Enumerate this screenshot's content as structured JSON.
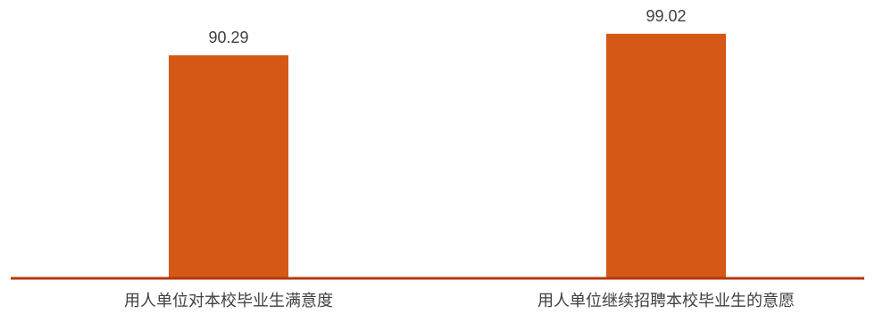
{
  "chart_data": {
    "type": "bar",
    "categories": [
      "用人单位对本校毕业生满意度",
      "用人单位继续招聘本校毕业生的意愿"
    ],
    "values": [
      90.29,
      99.02
    ],
    "value_labels": [
      "90.29",
      "99.02"
    ],
    "title": "",
    "xlabel": "",
    "ylabel": "",
    "y_axis_visible": false,
    "grid": false,
    "legend": "none",
    "colors": {
      "bar": "#D55817",
      "axis": "#B5380E",
      "text": "#404040"
    }
  }
}
